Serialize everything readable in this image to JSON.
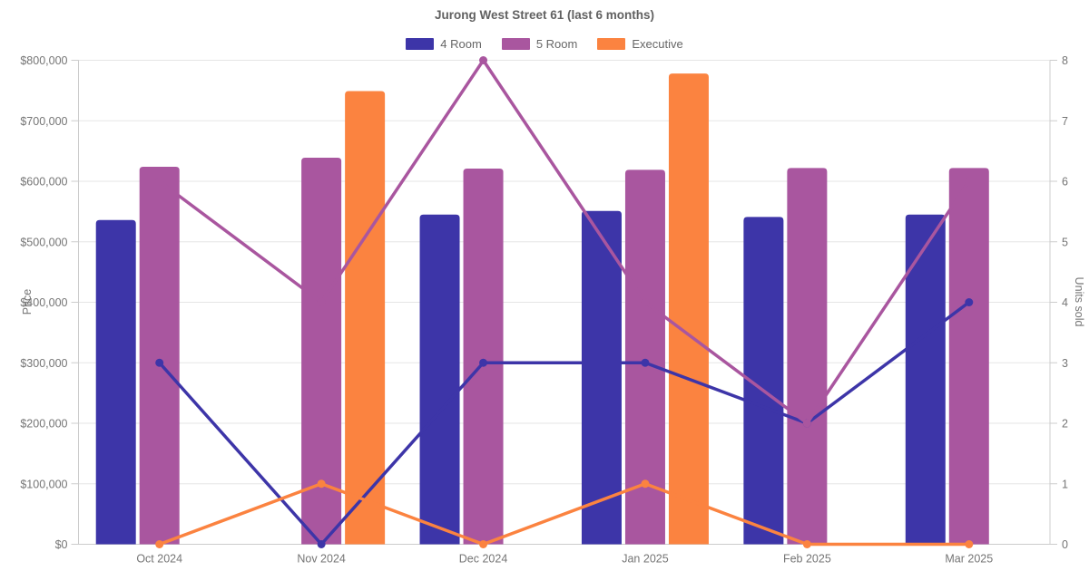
{
  "chart_data": {
    "type": "combo-bar-line",
    "title": "Jurong West Street 61 (last 6 months)",
    "categories": [
      "Oct 2024",
      "Nov 2024",
      "Dec 2024",
      "Jan 2025",
      "Feb 2025",
      "Mar 2025"
    ],
    "series": [
      {
        "name": "4 Room",
        "color": "#3d35a8",
        "price": [
          536000,
          null,
          545000,
          551000,
          541000,
          545000
        ],
        "units": [
          3,
          0,
          3,
          3,
          2,
          4
        ]
      },
      {
        "name": "5 Room",
        "color": "#a9569f",
        "price": [
          624000,
          639000,
          621000,
          619000,
          622000,
          622000
        ],
        "units": [
          6,
          4,
          8,
          4,
          2,
          6
        ]
      },
      {
        "name": "Executive",
        "color": "#fb8340",
        "price": [
          null,
          749000,
          null,
          778000,
          null,
          null
        ],
        "units": [
          0,
          1,
          0,
          1,
          0,
          0
        ]
      }
    ],
    "bars_metric": "price",
    "lines_metric": "units",
    "axes": {
      "left": {
        "label": "Price",
        "min": 0,
        "max": 800000,
        "tick_step": 100000,
        "tick_labels": [
          "$0",
          "$100,000",
          "$200,000",
          "$300,000",
          "$400,000",
          "$500,000",
          "$600,000",
          "$700,000",
          "$800,000"
        ]
      },
      "right": {
        "label": "Units sold",
        "min": 0,
        "max": 8,
        "tick_step": 1,
        "tick_labels": [
          "0",
          "1",
          "2",
          "3",
          "4",
          "5",
          "6",
          "7",
          "8"
        ]
      }
    },
    "grid": true,
    "legend_position": "top",
    "colors": {
      "gridline": "#e6e6e6",
      "axis_line": "#cccccc",
      "tick_text": "#757575",
      "title_text": "#616161",
      "legend_text": "#666666",
      "background": "#ffffff"
    }
  }
}
